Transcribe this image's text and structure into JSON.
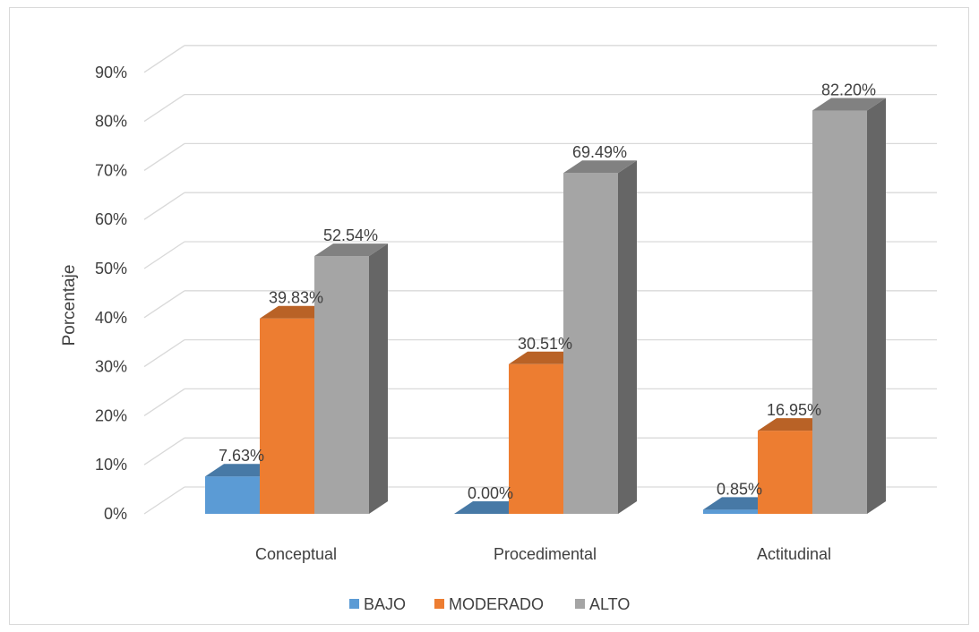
{
  "chart_data": {
    "type": "bar",
    "variant": "3d-clustered-column",
    "categories": [
      "Conceptual",
      "Procedimental",
      "Actitudinal"
    ],
    "series": [
      {
        "name": "BAJO",
        "values": [
          7.63,
          0.0,
          0.85
        ],
        "color": "#5b9bd5",
        "labels": [
          "7.63%",
          "0.00%",
          "0.85%"
        ]
      },
      {
        "name": "MODERADO",
        "values": [
          39.83,
          30.51,
          16.95
        ],
        "color": "#ed7d31",
        "labels": [
          "39.83%",
          "30.51%",
          "16.95%"
        ]
      },
      {
        "name": "ALTO",
        "values": [
          52.54,
          69.49,
          82.2
        ],
        "color": "#a5a5a5",
        "labels": [
          "52.54%",
          "69.49%",
          "82.20%"
        ]
      }
    ],
    "ylabel": "Porcentaje",
    "xlabel": "",
    "ylim": [
      0,
      90
    ],
    "yticks": [
      "0%",
      "10%",
      "20%",
      "30%",
      "40%",
      "50%",
      "60%",
      "70%",
      "80%",
      "90%"
    ],
    "grid": true,
    "legend": "bottom"
  }
}
